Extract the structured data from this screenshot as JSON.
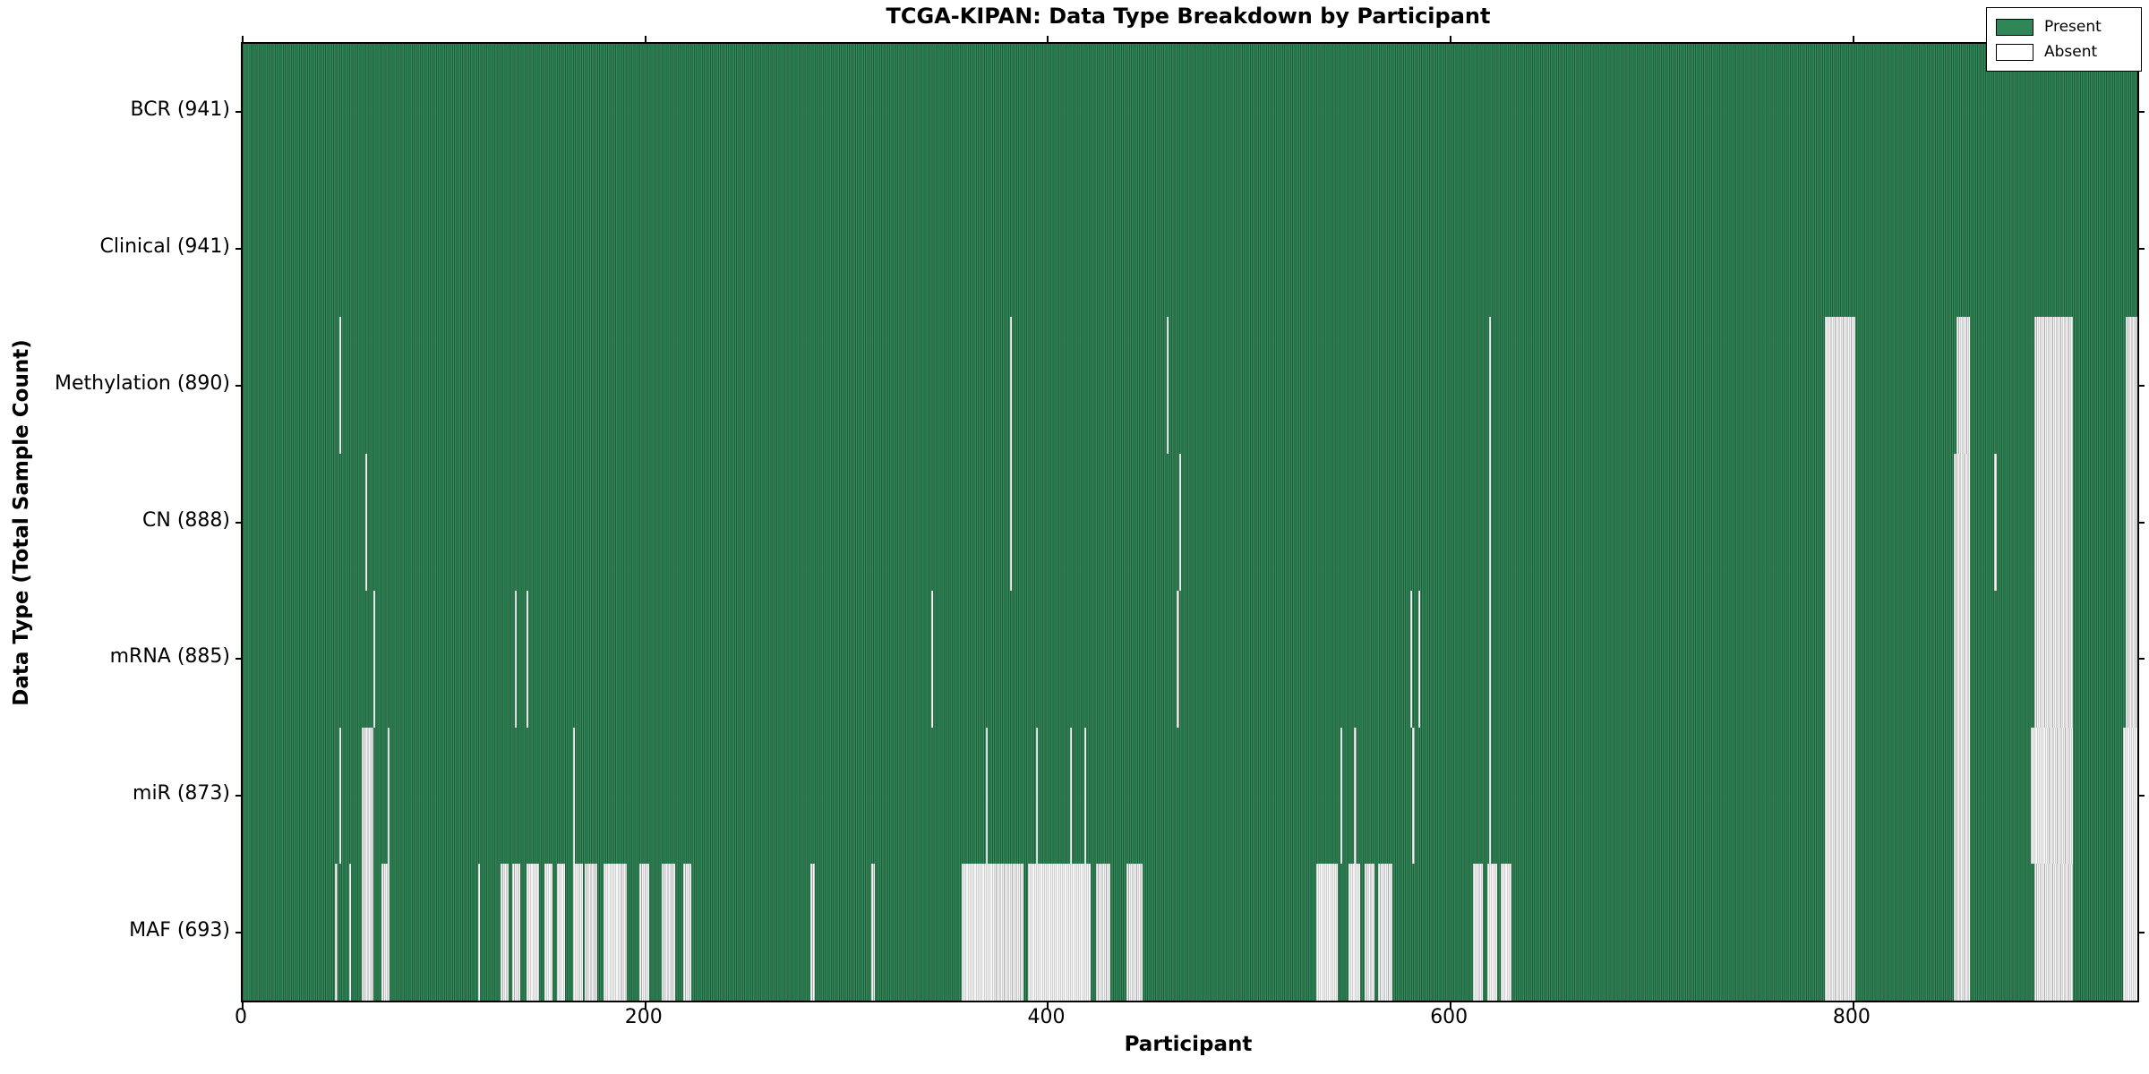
{
  "chart_data": {
    "type": "heatmap",
    "title": "TCGA-KIPAN: Data Type Breakdown by Participant",
    "xlabel": "Participant",
    "ylabel": "Data Type (Total Sample Count)",
    "x_range": [
      0,
      941
    ],
    "x_ticks": [
      0,
      200,
      400,
      600,
      800
    ],
    "grid": false,
    "legend_position": "upper-right",
    "legend": [
      {
        "label": "Present",
        "value": "present"
      },
      {
        "label": "Absent",
        "value": "absent"
      }
    ],
    "colors": {
      "present": "#2f8758",
      "present_edge": "#225c3b",
      "absent": "#f6f6f6",
      "absent_edge": "#a9a9a9"
    },
    "rows": [
      {
        "name": "BCR",
        "label": "BCR (941)",
        "total": 941,
        "absent_ranges": []
      },
      {
        "name": "Clinical",
        "label": "Clinical (941)",
        "total": 941,
        "absent_ranges": []
      },
      {
        "name": "Methylation",
        "label": "Methylation (890)",
        "total": 890,
        "absent_ranges": [
          [
            48,
            48
          ],
          [
            381,
            381
          ],
          [
            459,
            459
          ],
          [
            619,
            619
          ],
          [
            786,
            800
          ],
          [
            851,
            857
          ],
          [
            890,
            908
          ],
          [
            935,
            940
          ]
        ]
      },
      {
        "name": "CN",
        "label": "CN (888)",
        "total": 888,
        "absent_ranges": [
          [
            61,
            61
          ],
          [
            381,
            381
          ],
          [
            465,
            465
          ],
          [
            619,
            619
          ],
          [
            786,
            800
          ],
          [
            850,
            857
          ],
          [
            870,
            870
          ],
          [
            890,
            908
          ],
          [
            935,
            940
          ]
        ]
      },
      {
        "name": "mRNA",
        "label": "mRNA (885)",
        "total": 885,
        "absent_ranges": [
          [
            65,
            65
          ],
          [
            135,
            135
          ],
          [
            141,
            141
          ],
          [
            342,
            342
          ],
          [
            464,
            464
          ],
          [
            580,
            580
          ],
          [
            584,
            584
          ],
          [
            619,
            619
          ],
          [
            786,
            800
          ],
          [
            850,
            857
          ],
          [
            890,
            908
          ],
          [
            935,
            940
          ]
        ]
      },
      {
        "name": "miR",
        "label": "miR (873)",
        "total": 873,
        "absent_ranges": [
          [
            48,
            48
          ],
          [
            59,
            64
          ],
          [
            72,
            72
          ],
          [
            164,
            164
          ],
          [
            369,
            369
          ],
          [
            394,
            394
          ],
          [
            411,
            411
          ],
          [
            418,
            418
          ],
          [
            545,
            545
          ],
          [
            552,
            552
          ],
          [
            581,
            581
          ],
          [
            619,
            619
          ],
          [
            786,
            800
          ],
          [
            850,
            857
          ],
          [
            888,
            908
          ],
          [
            934,
            940
          ]
        ]
      },
      {
        "name": "MAF",
        "label": "MAF (693)",
        "total": 693,
        "absent_ranges": [
          [
            46,
            46
          ],
          [
            53,
            53
          ],
          [
            59,
            64
          ],
          [
            69,
            72
          ],
          [
            117,
            117
          ],
          [
            128,
            131
          ],
          [
            134,
            137
          ],
          [
            141,
            146
          ],
          [
            150,
            153
          ],
          [
            156,
            159
          ],
          [
            164,
            168
          ],
          [
            170,
            175
          ],
          [
            179,
            190
          ],
          [
            197,
            201
          ],
          [
            208,
            214
          ],
          [
            219,
            222
          ],
          [
            282,
            283
          ],
          [
            312,
            313
          ],
          [
            357,
            387
          ],
          [
            390,
            420
          ],
          [
            424,
            430
          ],
          [
            439,
            446
          ],
          [
            533,
            543
          ],
          [
            549,
            554
          ],
          [
            557,
            561
          ],
          [
            564,
            570
          ],
          [
            611,
            615
          ],
          [
            618,
            622
          ],
          [
            625,
            629
          ],
          [
            786,
            800
          ],
          [
            850,
            857
          ],
          [
            890,
            908
          ],
          [
            934,
            940
          ]
        ]
      }
    ]
  }
}
